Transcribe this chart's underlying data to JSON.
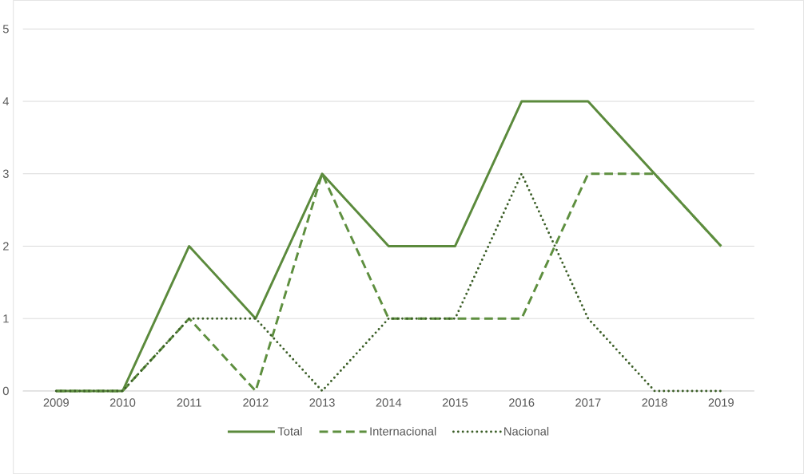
{
  "chart_data": {
    "type": "line",
    "categories": [
      "2009",
      "2010",
      "2011",
      "2012",
      "2013",
      "2014",
      "2015",
      "2016",
      "2017",
      "2018",
      "2019"
    ],
    "series": [
      {
        "name": "Total",
        "color": "#5b8a3c",
        "line_style": "solid",
        "values": [
          0,
          0,
          2,
          1,
          3,
          2,
          2,
          4,
          4,
          3,
          2
        ]
      },
      {
        "name": "Internacional",
        "color": "#5e8f3f",
        "line_style": "dashed",
        "values": [
          0,
          0,
          1,
          0,
          3,
          1,
          1,
          1,
          3,
          3,
          2
        ]
      },
      {
        "name": "Nacional",
        "color": "#3b5e27",
        "line_style": "dotted",
        "values": [
          0,
          0,
          1,
          1,
          0,
          1,
          1,
          3,
          1,
          0,
          0
        ]
      }
    ],
    "ylim": [
      0,
      5
    ],
    "yticks": [
      0,
      1,
      2,
      3,
      4,
      5
    ],
    "grid": "y",
    "legend": "bottom",
    "marker": "none"
  }
}
